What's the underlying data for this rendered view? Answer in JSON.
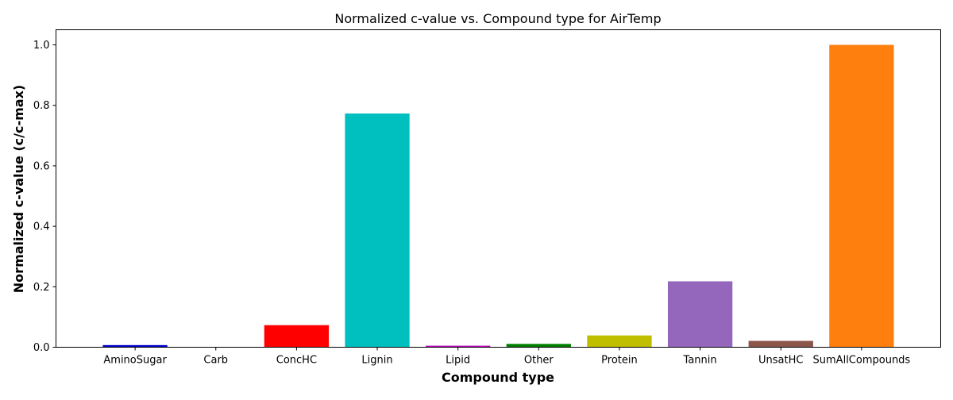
{
  "chart_data": {
    "type": "bar",
    "title": "Normalized c-value vs. Compound type for AirTemp",
    "xlabel": "Compound type",
    "ylabel": "Normalized c-value (c/c-max)",
    "categories": [
      "AminoSugar",
      "Carb",
      "ConcHC",
      "Lignin",
      "Lipid",
      "Other",
      "Protein",
      "Tannin",
      "UnsatHC",
      "SumAllCompounds"
    ],
    "values": [
      0.007,
      0.0,
      0.073,
      0.773,
      0.005,
      0.011,
      0.039,
      0.218,
      0.021,
      1.0
    ],
    "colors": [
      "#0000cc",
      "#1f77b4",
      "#ff0000",
      "#00bfbf",
      "#bf00bf",
      "#007f00",
      "#bfbf00",
      "#9467bd",
      "#8c564b",
      "#ff7f0e"
    ],
    "ylim": [
      0,
      1.05
    ],
    "yticks": [
      "0.0",
      "0.2",
      "0.4",
      "0.6",
      "0.8",
      "1.0"
    ],
    "grid": false,
    "legend": "none"
  }
}
